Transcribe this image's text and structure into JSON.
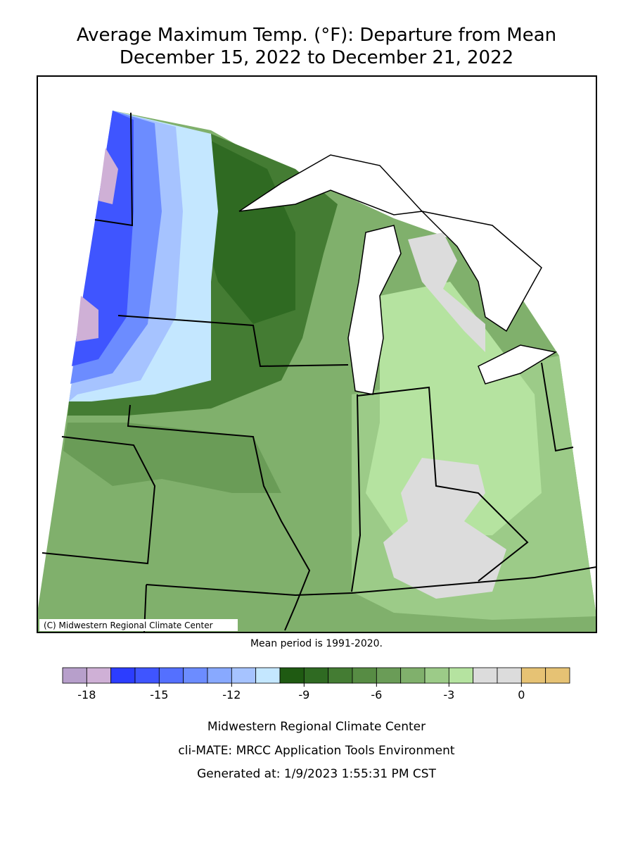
{
  "title": "Average Maximum Temp. (°F): Departure from Mean",
  "subtitle": "December 15, 2022 to December 21, 2022",
  "map": {
    "credit": "(C) Midwestern Regional Climate Center"
  },
  "note": "Mean period is 1991-2020.",
  "colorbar": {
    "bins": [
      -19,
      -18,
      -17,
      -16,
      -15,
      -14,
      -13,
      -12,
      -11,
      -10,
      -9,
      -8,
      -7,
      -6,
      -5,
      -4,
      -3,
      -2,
      -1,
      0,
      1,
      2
    ],
    "colors": [
      "#b79fcb",
      "#cfb0d6",
      "#2c3dff",
      "#3f55ff",
      "#5470ff",
      "#6c8cff",
      "#88a9ff",
      "#a6c3ff",
      "#c4e7ff",
      "#1f5a12",
      "#2f6a22",
      "#447c33",
      "#578c44",
      "#6a9c57",
      "#80b06c",
      "#9ccb88",
      "#b5e3a0",
      "#dcdcdc",
      "#dcdcdc",
      "#e6c274",
      "#e6c274"
    ],
    "ticks": [
      -18,
      -15,
      -12,
      -9,
      -6,
      -3,
      0
    ]
  },
  "footer": [
    "Midwestern Regional Climate Center",
    "cli-MATE: MRCC Application Tools Environment",
    "Generated at: 1/9/2023 1:55:31 PM CST"
  ]
}
